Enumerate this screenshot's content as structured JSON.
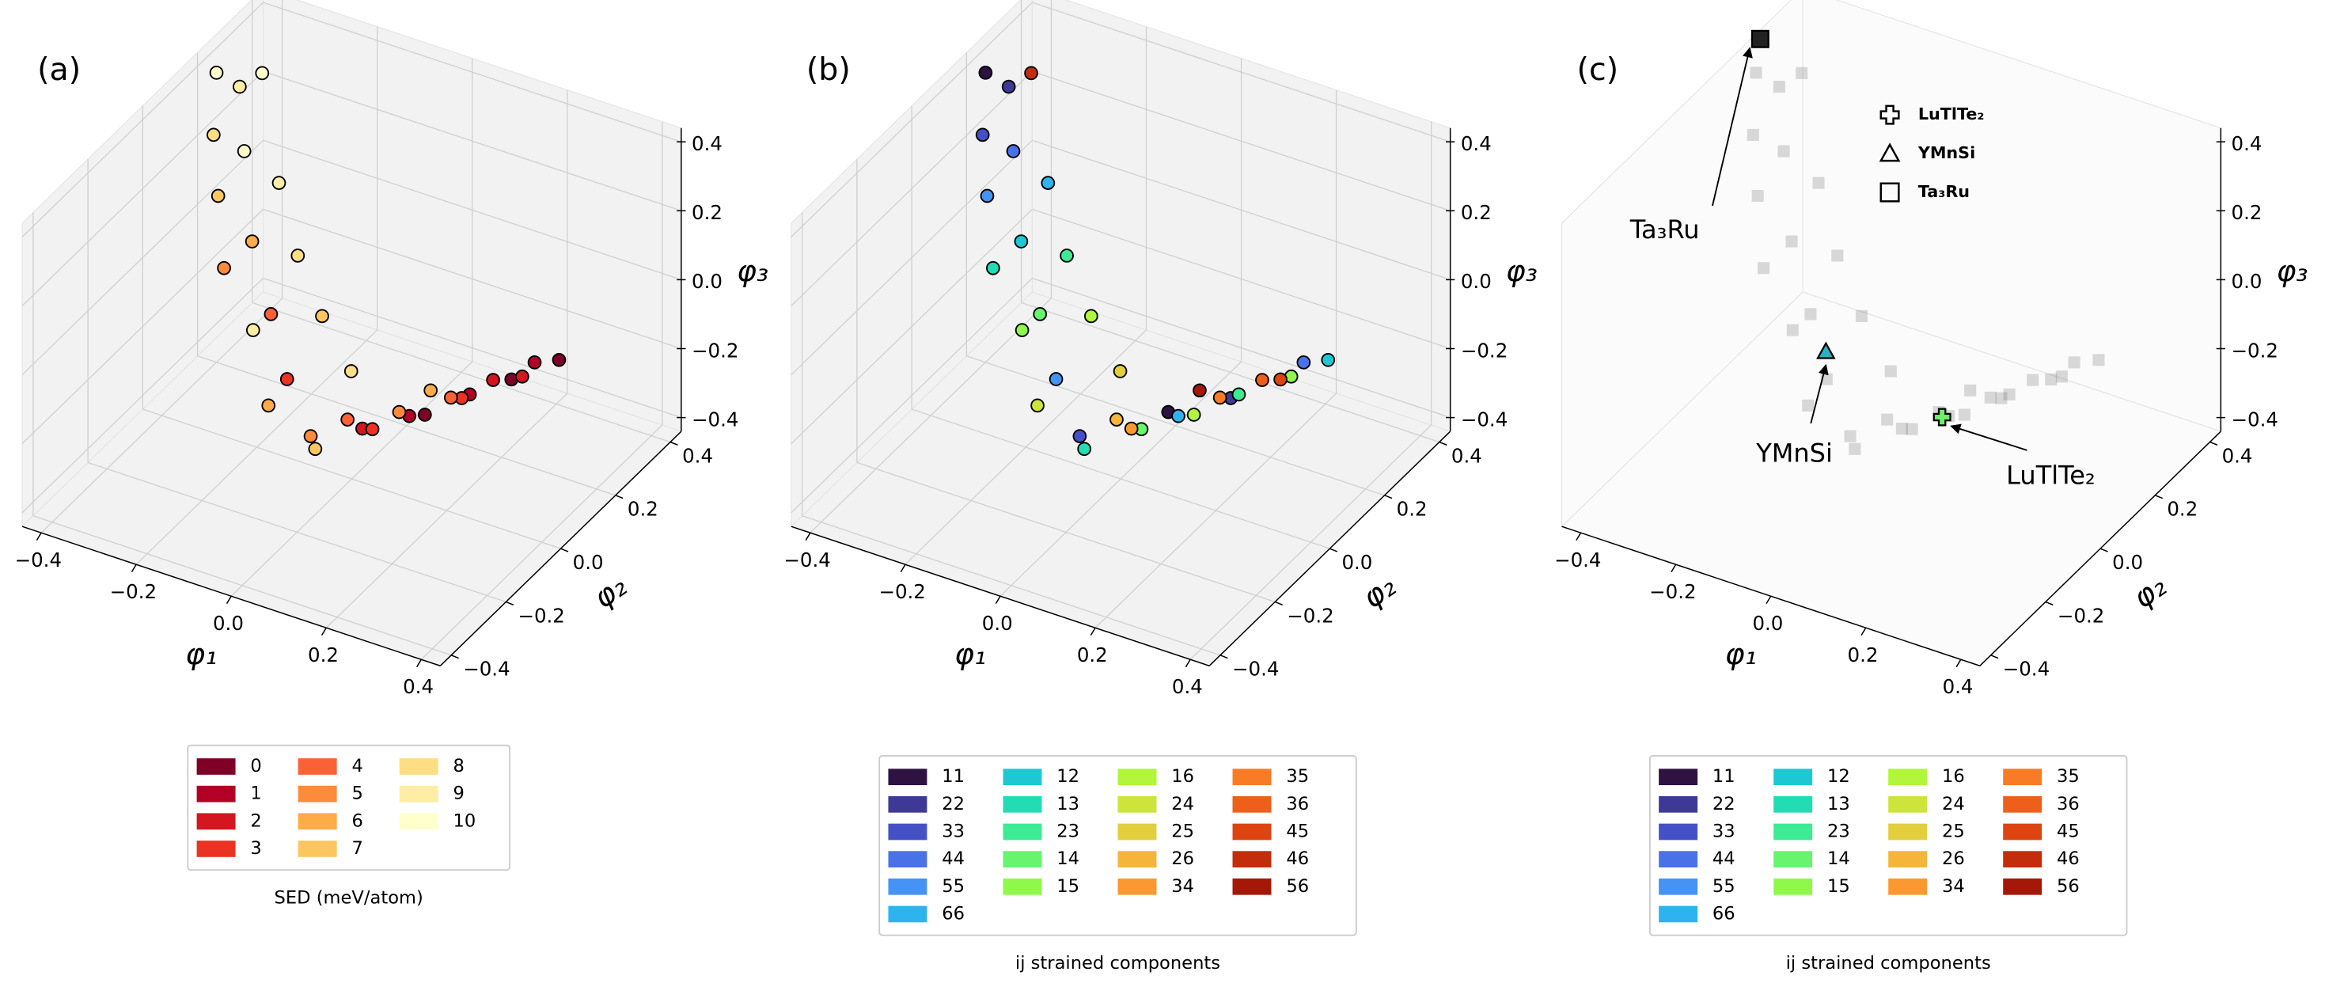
{
  "chart_data": [
    {
      "type": "scatter3d",
      "panel_label": "(a)",
      "xlabel": "φ₁",
      "ylabel": "φ₂",
      "zlabel": "φ₃",
      "xlim": [
        -0.44,
        0.44
      ],
      "ylim": [
        -0.44,
        0.44
      ],
      "zlim": [
        -0.44,
        0.44
      ],
      "xticks": [
        {
          "value": -0.4,
          "label": "−0.4"
        },
        {
          "value": -0.2,
          "label": "−0.2"
        },
        {
          "value": 0,
          "label": "0.0"
        },
        0.2,
        0.4
      ],
      "yticks": [
        {
          "value": -0.4,
          "label": "−0.4"
        },
        {
          "value": -0.2,
          "label": "−0.2"
        },
        {
          "value": 0,
          "label": "0.0"
        },
        0.2,
        0.4
      ],
      "zticks": [
        {
          "value": -0.4,
          "label": "−0.4"
        },
        {
          "value": -0.2,
          "label": "−0.2"
        },
        {
          "value": 0,
          "label": "0.0"
        },
        0.2,
        0.4
      ],
      "grid": true,
      "legend": "bottom",
      "legend_title": "SED (meV/atom)",
      "legend_ncol": 3,
      "series": [
        {
          "name": "0",
          "color": "#7f0026",
          "x": [
            0.35,
            0.29,
            0.2
          ],
          "y": [
            0.15,
            0.08,
            -0.08
          ],
          "z": [
            -0.05,
            -0.08,
            -0.1
          ]
        },
        {
          "name": "1",
          "color": "#b30026",
          "x": [
            0.31,
            0.26,
            0.15
          ],
          "y": [
            0.13,
            -0.02,
            -0.05
          ],
          "z": [
            -0.06,
            -0.06,
            -0.15
          ]
        },
        {
          "name": "2",
          "color": "#d3161f",
          "x": [
            0.33,
            0.24,
            0.08
          ],
          "y": [
            0.05,
            0.1,
            -0.1
          ],
          "z": [
            -0.03,
            -0.12,
            -0.18
          ]
        },
        {
          "name": "3",
          "color": "#eb3323",
          "x": [
            0.22,
            0.13,
            -0.09
          ],
          "y": [
            0.02,
            -0.15,
            -0.08
          ],
          "z": [
            -0.12,
            -0.12,
            -0.13
          ]
        },
        {
          "name": "4",
          "color": "#fb6137",
          "x": [
            0.18,
            0.02,
            -0.17
          ],
          "y": [
            0.05,
            -0.05,
            0.0
          ],
          "z": [
            -0.16,
            -0.22,
            -0.04
          ]
        },
        {
          "name": "5",
          "color": "#fd8b3c",
          "x": [
            0.1,
            0.0,
            -0.24
          ],
          "y": [
            0.0,
            -0.15,
            -0.05
          ],
          "z": [
            -0.2,
            -0.2,
            0.1
          ]
        },
        {
          "name": "6",
          "color": "#feab49",
          "x": [
            0.12,
            -0.06,
            -0.25
          ],
          "y": [
            0.08,
            -0.2,
            0.07
          ],
          "z": [
            -0.19,
            -0.1,
            0.08
          ]
        },
        {
          "name": "7",
          "color": "#fec661",
          "x": [
            0.05,
            -0.12,
            -0.31
          ],
          "y": [
            -0.22,
            0.1,
            0.05
          ],
          "z": [
            -0.16,
            -0.1,
            0.2
          ]
        },
        {
          "name": "8",
          "color": "#fedd84",
          "x": [
            -0.03,
            -0.2,
            -0.36
          ],
          "y": [
            0.05,
            0.15,
            0.12
          ],
          "z": [
            -0.18,
            0.0,
            0.3
          ]
        },
        {
          "name": "9",
          "color": "#ffeda6",
          "x": [
            -0.15,
            -0.28,
            -0.38
          ],
          "y": [
            -0.1,
            0.22,
            0.25
          ],
          "z": [
            0.0,
            0.12,
            0.33
          ]
        },
        {
          "name": "10",
          "color": "#ffffcc",
          "x": [
            -0.33,
            -0.4,
            -0.35
          ],
          "y": [
            0.18,
            0.2,
            0.28
          ],
          "z": [
            0.22,
            0.4,
            0.36
          ]
        }
      ]
    },
    {
      "type": "scatter3d",
      "panel_label": "(b)",
      "xlabel": "φ₁",
      "ylabel": "φ₂",
      "zlabel": "φ₃",
      "xlim": [
        -0.44,
        0.44
      ],
      "ylim": [
        -0.44,
        0.44
      ],
      "zlim": [
        -0.44,
        0.44
      ],
      "xticks": [
        {
          "value": -0.4,
          "label": "−0.4"
        },
        {
          "value": -0.2,
          "label": "−0.2"
        },
        {
          "value": 0,
          "label": "0.0"
        },
        0.2,
        0.4
      ],
      "yticks": [
        {
          "value": -0.4,
          "label": "−0.4"
        },
        {
          "value": -0.2,
          "label": "−0.2"
        },
        {
          "value": 0,
          "label": "0.0"
        },
        0.2,
        0.4
      ],
      "zticks": [
        {
          "value": -0.4,
          "label": "−0.4"
        },
        {
          "value": -0.2,
          "label": "−0.2"
        },
        {
          "value": 0,
          "label": "0.0"
        },
        0.2,
        0.4
      ],
      "grid": true,
      "legend": "bottom",
      "legend_title": "ij strained components",
      "legend_ncol": 4,
      "series": [
        {
          "name": "11",
          "color": "#2d1242",
          "x": [
            -0.4,
            0.1
          ],
          "y": [
            0.2,
            0.0
          ],
          "z": [
            0.4,
            -0.2
          ]
        },
        {
          "name": "22",
          "color": "#3e3896",
          "x": [
            -0.38,
            0.22
          ],
          "y": [
            0.25,
            0.02
          ],
          "z": [
            0.33,
            -0.12
          ]
        },
        {
          "name": "33",
          "color": "#4451c6",
          "x": [
            -0.36,
            0.0
          ],
          "y": [
            0.12,
            -0.15
          ],
          "z": [
            0.3,
            -0.2
          ]
        },
        {
          "name": "44",
          "color": "#4a72e8",
          "x": [
            -0.33,
            0.31
          ],
          "y": [
            0.18,
            0.13
          ],
          "z": [
            0.22,
            -0.06
          ]
        },
        {
          "name": "55",
          "color": "#4593f5",
          "x": [
            -0.31,
            -0.09
          ],
          "y": [
            0.05,
            -0.08
          ],
          "z": [
            0.2,
            -0.13
          ]
        },
        {
          "name": "66",
          "color": "#2db3f0",
          "x": [
            -0.28,
            0.15
          ],
          "y": [
            0.22,
            -0.05
          ],
          "z": [
            0.12,
            -0.15
          ]
        },
        {
          "name": "12",
          "color": "#1ec8d3",
          "x": [
            -0.25,
            0.35
          ],
          "y": [
            0.07,
            0.15
          ],
          "z": [
            0.08,
            -0.05
          ]
        },
        {
          "name": "13",
          "color": "#22dcb4",
          "x": [
            -0.24,
            0.05
          ],
          "y": [
            -0.05,
            -0.22
          ],
          "z": [
            0.1,
            -0.16
          ]
        },
        {
          "name": "23",
          "color": "#3ceb94",
          "x": [
            -0.2,
            0.26
          ],
          "y": [
            0.15,
            -0.02
          ],
          "z": [
            0.0,
            -0.06
          ]
        },
        {
          "name": "14",
          "color": "#66f56d",
          "x": [
            -0.17,
            0.13
          ],
          "y": [
            0.0,
            -0.15
          ],
          "z": [
            -0.04,
            -0.12
          ]
        },
        {
          "name": "15",
          "color": "#8ff94b",
          "x": [
            -0.15,
            0.33
          ],
          "y": [
            -0.1,
            0.05
          ],
          "z": [
            0.0,
            -0.03
          ]
        },
        {
          "name": "16",
          "color": "#b1f63b",
          "x": [
            -0.12,
            0.2
          ],
          "y": [
            0.1,
            -0.08
          ],
          "z": [
            -0.1,
            -0.1
          ]
        },
        {
          "name": "24",
          "color": "#cde43a",
          "x": [
            -0.06
          ],
          "y": [
            -0.2
          ],
          "z": [
            -0.1
          ]
        },
        {
          "name": "25",
          "color": "#e3ce3d",
          "x": [
            -0.03
          ],
          "y": [
            0.05
          ],
          "z": [
            -0.18
          ]
        },
        {
          "name": "26",
          "color": "#f4b53a",
          "x": [
            0.02
          ],
          "y": [
            -0.05
          ],
          "z": [
            -0.22
          ]
        },
        {
          "name": "34",
          "color": "#fb9930",
          "x": [
            0.08
          ],
          "y": [
            -0.1
          ],
          "z": [
            -0.18
          ]
        },
        {
          "name": "35",
          "color": "#f97c25",
          "x": [
            0.18
          ],
          "y": [
            0.05
          ],
          "z": [
            -0.16
          ]
        },
        {
          "name": "36",
          "color": "#ee5f1a",
          "x": [
            0.24
          ],
          "y": [
            0.1
          ],
          "z": [
            -0.12
          ]
        },
        {
          "name": "45",
          "color": "#dd4411",
          "x": [
            0.29
          ],
          "y": [
            0.08
          ],
          "z": [
            -0.08
          ]
        },
        {
          "name": "46",
          "color": "#c42d0b",
          "x": [
            -0.35
          ],
          "y": [
            0.28
          ],
          "z": [
            0.36
          ]
        },
        {
          "name": "56",
          "color": "#a51808",
          "x": [
            0.12
          ],
          "y": [
            0.08
          ],
          "z": [
            -0.19
          ]
        }
      ]
    },
    {
      "type": "scatter3d",
      "panel_label": "(c)",
      "xlabel": "φ₁",
      "ylabel": "φ₂",
      "zlabel": "φ₃",
      "xlim": [
        -0.44,
        0.44
      ],
      "ylim": [
        -0.44,
        0.44
      ],
      "zlim": [
        -0.44,
        0.44
      ],
      "xticks": [
        {
          "value": -0.4,
          "label": "−0.4"
        },
        {
          "value": -0.2,
          "label": "−0.2"
        },
        {
          "value": 0,
          "label": "0.0"
        },
        0.2,
        0.4
      ],
      "yticks": [
        {
          "value": -0.4,
          "label": "−0.4"
        },
        {
          "value": -0.2,
          "label": "−0.2"
        },
        {
          "value": 0,
          "label": "0.0"
        },
        0.2,
        0.4
      ],
      "zticks": [
        {
          "value": -0.4,
          "label": "−0.4"
        },
        {
          "value": -0.2,
          "label": "−0.2"
        },
        {
          "value": 0,
          "label": "0.0"
        },
        0.2,
        0.4
      ],
      "grid": false,
      "legend": "bottom",
      "legend_title": "ij strained components",
      "legend_ncol": 4,
      "series": [
        {
          "name": "11",
          "color": "#2d1242"
        },
        {
          "name": "22",
          "color": "#3e3896"
        },
        {
          "name": "33",
          "color": "#4451c6"
        },
        {
          "name": "44",
          "color": "#4a72e8"
        },
        {
          "name": "55",
          "color": "#4593f5"
        },
        {
          "name": "66",
          "color": "#2db3f0"
        },
        {
          "name": "12",
          "color": "#1ec8d3"
        },
        {
          "name": "13",
          "color": "#22dcb4"
        },
        {
          "name": "23",
          "color": "#3ceb94"
        },
        {
          "name": "14",
          "color": "#66f56d"
        },
        {
          "name": "15",
          "color": "#8ff94b"
        },
        {
          "name": "16",
          "color": "#b1f63b"
        },
        {
          "name": "24",
          "color": "#cde43a"
        },
        {
          "name": "25",
          "color": "#e3ce3d"
        },
        {
          "name": "26",
          "color": "#f4b53a"
        },
        {
          "name": "34",
          "color": "#fb9930"
        },
        {
          "name": "35",
          "color": "#f97c25"
        },
        {
          "name": "36",
          "color": "#ee5f1a"
        },
        {
          "name": "45",
          "color": "#dd4411"
        },
        {
          "name": "46",
          "color": "#c42d0b"
        },
        {
          "name": "56",
          "color": "#a51808"
        }
      ],
      "points": {
        "color": "#555555",
        "x": [
          -0.4,
          -0.38,
          -0.36,
          -0.33,
          -0.31,
          -0.28,
          -0.25,
          -0.24,
          -0.2,
          -0.17,
          -0.15,
          -0.12,
          -0.09,
          -0.06,
          -0.03,
          0.0,
          0.02,
          0.05,
          0.08,
          0.1,
          0.13,
          0.15,
          0.18,
          0.2,
          0.22,
          0.24,
          0.26,
          0.29,
          0.31,
          0.33,
          0.35,
          -0.35,
          0.12
        ],
        "y": [
          0.2,
          0.25,
          0.12,
          0.18,
          0.05,
          0.22,
          0.07,
          -0.05,
          0.15,
          0.0,
          -0.1,
          0.1,
          -0.08,
          -0.2,
          0.05,
          -0.15,
          -0.05,
          -0.22,
          -0.1,
          0.0,
          -0.15,
          -0.05,
          0.05,
          -0.08,
          0.02,
          0.1,
          -0.02,
          0.08,
          0.13,
          0.05,
          0.15,
          0.28,
          0.08
        ],
        "z": [
          0.4,
          0.33,
          0.3,
          0.22,
          0.2,
          0.12,
          0.08,
          0.1,
          0.0,
          -0.04,
          0.0,
          -0.1,
          -0.13,
          -0.1,
          -0.18,
          -0.2,
          -0.22,
          -0.16,
          -0.18,
          -0.2,
          -0.12,
          -0.15,
          -0.16,
          -0.1,
          -0.12,
          -0.12,
          -0.06,
          -0.08,
          -0.06,
          -0.03,
          -0.05,
          0.36,
          -0.19
        ]
      },
      "highlights": [
        {
          "name": "LuTlTe₂",
          "marker": "plus",
          "color": "#6ef06a",
          "x": 0.13,
          "y": -0.04,
          "z": -0.17
        },
        {
          "name": "YMnSi",
          "marker": "triangle",
          "color": "#2ab0c0",
          "x": -0.08,
          "y": -0.1,
          "z": -0.03
        },
        {
          "name": "Ta₃Ru",
          "marker": "square",
          "color": "#222222",
          "x": -0.42,
          "y": 0.25,
          "z": 0.45
        }
      ]
    }
  ]
}
